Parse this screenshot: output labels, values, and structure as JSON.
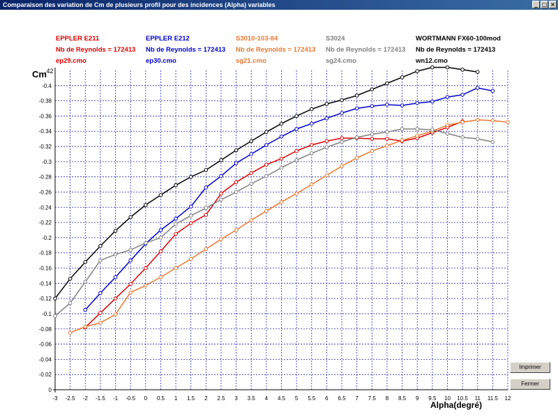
{
  "window": {
    "title": "Comparaison des variation de Cm de plusieurs profil pour des incidences (Alpha) variables",
    "controls": [
      "_",
      "□",
      "×"
    ]
  },
  "buttons": {
    "print_label": "Imprimer",
    "close_label": "Fermer"
  },
  "legend": [
    {
      "name": "EPPLER E211",
      "reynolds": "Nb de Reynolds =  172413",
      "file": "ep29.cmo",
      "color": "#dd0000"
    },
    {
      "name": "EPPLER E212",
      "reynolds": "Nb de Reynolds =  172413",
      "file": "ep30.cmo",
      "color": "#0000cc"
    },
    {
      "name": "S3010-103-84",
      "reynolds": "Nb de Reynolds =  172413",
      "file": "sg21.cmo",
      "color": "#e87830"
    },
    {
      "name": "S3024",
      "reynolds": "Nb de Reynolds =  172413",
      "file": "sg24.cmo",
      "color": "#808080"
    },
    {
      "name": "WORTMANN FX60-100mod",
      "reynolds": "Nb de Reynolds =  172413",
      "file": "wn12.cmo",
      "color": "#000000"
    }
  ],
  "chart_data": {
    "type": "line",
    "ylabel": "Cm",
    "xlabel": "Alpha(degré)",
    "xlim": [
      -3,
      12
    ],
    "ylim": [
      0,
      -0.42
    ],
    "y_top_label": ".42",
    "x_ticks": [
      "-3",
      "-2.5",
      "-2",
      "-1.5",
      "-1",
      "-0.5",
      "0",
      "0.5",
      "1",
      "1.5",
      "2",
      "2.5",
      "3",
      "3.5",
      "4",
      "4.5",
      "5",
      "5.5",
      "6",
      "6.5",
      "7",
      "7.5",
      "8",
      "8.5",
      "9",
      "9.5",
      "10",
      "10.5",
      "11",
      "11.5",
      "12"
    ],
    "y_ticks": [
      "-0.4",
      "-0.38",
      "-0.36",
      "-0.34",
      "-0.32",
      "-0.3",
      "-0.28",
      "-0.26",
      "-0.24",
      "-0.22",
      "-0.2",
      "-0.18",
      "-0.16",
      "-0.14",
      "-0.12",
      "-0.1",
      "-0.08",
      "-0.06",
      "-0.04",
      "-0.02",
      "0"
    ],
    "grid": true,
    "series": [
      {
        "name": "EPPLER E211",
        "color": "#dd0000",
        "x": [
          -2,
          -1.5,
          -1,
          -0.5,
          0,
          0.5,
          1,
          1.5,
          2,
          2.5,
          3,
          3.5,
          4,
          4.5,
          5,
          5.5,
          6,
          6.5,
          7,
          7.5,
          8,
          8.5,
          9,
          9.5,
          10,
          10.5
        ],
        "y": [
          -0.082,
          -0.101,
          -0.12,
          -0.139,
          -0.16,
          -0.182,
          -0.205,
          -0.219,
          -0.23,
          -0.258,
          -0.273,
          -0.285,
          -0.296,
          -0.304,
          -0.314,
          -0.322,
          -0.327,
          -0.331,
          -0.331,
          -0.33,
          -0.33,
          -0.327,
          -0.331,
          -0.338,
          -0.345,
          -0.353
        ]
      },
      {
        "name": "EPPLER E212",
        "color": "#0000cc",
        "x": [
          -2,
          -1.5,
          -1,
          -0.5,
          0,
          0.5,
          1,
          1.5,
          2,
          2.5,
          3,
          3.5,
          4,
          4.5,
          5,
          5.5,
          6,
          6.5,
          7,
          7.5,
          8,
          8.5,
          9,
          9.5,
          10,
          10.5,
          11,
          11.5
        ],
        "y": [
          -0.105,
          -0.127,
          -0.148,
          -0.17,
          -0.192,
          -0.21,
          -0.225,
          -0.241,
          -0.266,
          -0.281,
          -0.298,
          -0.31,
          -0.322,
          -0.333,
          -0.343,
          -0.35,
          -0.357,
          -0.364,
          -0.37,
          -0.373,
          -0.375,
          -0.374,
          -0.377,
          -0.379,
          -0.385,
          -0.388,
          -0.397,
          -0.393
        ]
      },
      {
        "name": "S3010-103-84",
        "color": "#e87830",
        "x": [
          -2.5,
          -2,
          -1.5,
          -1,
          -0.5,
          0,
          0.5,
          1,
          1.5,
          2,
          2.5,
          3,
          3.5,
          4,
          4.5,
          5,
          5.5,
          6,
          6.5,
          7,
          7.5,
          8,
          8.5,
          9,
          9.5,
          10,
          10.5,
          11,
          11.5,
          12
        ],
        "y": [
          -0.075,
          -0.083,
          -0.088,
          -0.099,
          -0.128,
          -0.137,
          -0.148,
          -0.16,
          -0.172,
          -0.185,
          -0.198,
          -0.21,
          -0.223,
          -0.235,
          -0.247,
          -0.258,
          -0.27,
          -0.282,
          -0.294,
          -0.305,
          -0.314,
          -0.321,
          -0.328,
          -0.334,
          -0.34,
          -0.348,
          -0.352,
          -0.355,
          -0.354,
          -0.352
        ]
      },
      {
        "name": "S3024",
        "color": "#808080",
        "x": [
          -3,
          -2.5,
          -2,
          -1.5,
          -1,
          -0.5,
          0,
          0.5,
          1,
          1.5,
          2,
          2.5,
          3,
          3.5,
          4,
          4.5,
          5,
          5.5,
          6,
          6.5,
          7,
          7.5,
          8,
          8.5,
          9,
          9.5,
          10,
          10.5,
          11,
          11.5
        ],
        "y": [
          -0.097,
          -0.114,
          -0.142,
          -0.17,
          -0.178,
          -0.184,
          -0.193,
          -0.2,
          -0.218,
          -0.229,
          -0.239,
          -0.25,
          -0.26,
          -0.271,
          -0.281,
          -0.292,
          -0.302,
          -0.311,
          -0.319,
          -0.326,
          -0.332,
          -0.336,
          -0.339,
          -0.343,
          -0.343,
          -0.342,
          -0.337,
          -0.332,
          -0.33,
          -0.326
        ]
      },
      {
        "name": "WORTMANN FX60-100mod",
        "color": "#000000",
        "x": [
          -3,
          -2.5,
          -2,
          -1.5,
          -1,
          -0.5,
          0,
          0.5,
          1,
          1.5,
          2,
          2.5,
          3,
          3.5,
          4,
          4.5,
          5,
          5.5,
          6,
          6.5,
          7,
          7.5,
          8,
          8.5,
          9,
          9.5,
          10,
          10.5,
          11
        ],
        "y": [
          -0.12,
          -0.146,
          -0.168,
          -0.189,
          -0.209,
          -0.227,
          -0.243,
          -0.256,
          -0.269,
          -0.28,
          -0.289,
          -0.302,
          -0.315,
          -0.327,
          -0.339,
          -0.35,
          -0.36,
          -0.369,
          -0.376,
          -0.381,
          -0.387,
          -0.395,
          -0.403,
          -0.411,
          -0.419,
          -0.424,
          -0.424,
          -0.421,
          -0.418
        ]
      }
    ]
  }
}
